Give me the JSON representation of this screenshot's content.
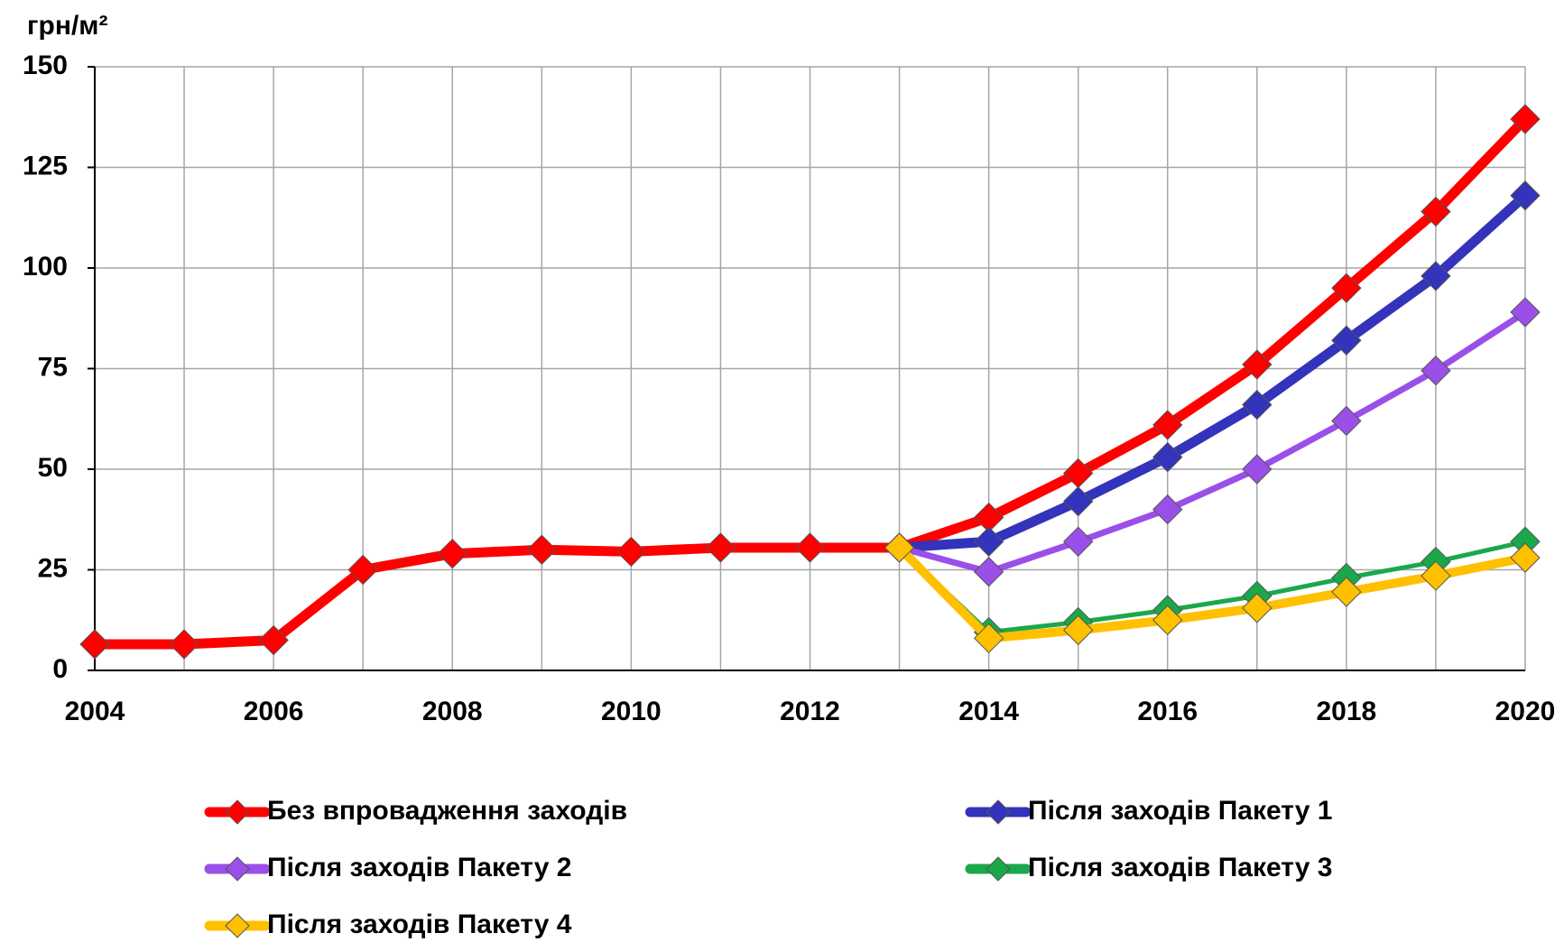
{
  "chart_data": {
    "type": "line",
    "y_axis_label": "грн/м²",
    "x": [
      2004,
      2005,
      2006,
      2007,
      2008,
      2009,
      2010,
      2011,
      2012,
      2013,
      2014,
      2015,
      2016,
      2017,
      2018,
      2019,
      2020
    ],
    "xlim": [
      2004,
      2020
    ],
    "xticks": [
      2004,
      2006,
      2008,
      2010,
      2012,
      2014,
      2016,
      2018,
      2020
    ],
    "ylim": [
      0,
      150
    ],
    "yticks": [
      0,
      25,
      50,
      75,
      100,
      125,
      150
    ],
    "grid": true,
    "legend": "bottom",
    "series": [
      {
        "name": "Без впровадження заходів",
        "color": "#ff0000",
        "values": [
          6.5,
          6.5,
          7.5,
          25,
          29,
          30,
          29.5,
          30.5,
          30.5,
          30.5,
          38,
          49,
          61,
          76,
          95,
          114,
          137
        ]
      },
      {
        "name": "Після заходів Пакету 1",
        "color": "#3333bb",
        "values": [
          null,
          null,
          null,
          null,
          null,
          null,
          null,
          null,
          null,
          30.5,
          32,
          42,
          53,
          66,
          82,
          98,
          118
        ]
      },
      {
        "name": "Після заходів Пакету 2",
        "color": "#9a4fe8",
        "values": [
          null,
          null,
          null,
          null,
          null,
          null,
          null,
          null,
          null,
          30.5,
          24.5,
          32,
          40,
          50,
          62,
          74.5,
          89
        ]
      },
      {
        "name": "Після заходів Пакету 3",
        "color": "#1aa84a",
        "values": [
          null,
          null,
          null,
          null,
          null,
          null,
          null,
          null,
          null,
          30.5,
          9.5,
          12,
          15,
          18.5,
          23,
          27,
          32
        ]
      },
      {
        "name": "Після заходів Пакету 4",
        "color": "#ffc000",
        "values": [
          null,
          null,
          null,
          null,
          null,
          null,
          null,
          null,
          null,
          30.5,
          8,
          10,
          12.5,
          15.5,
          19.5,
          23.5,
          28
        ]
      }
    ]
  }
}
